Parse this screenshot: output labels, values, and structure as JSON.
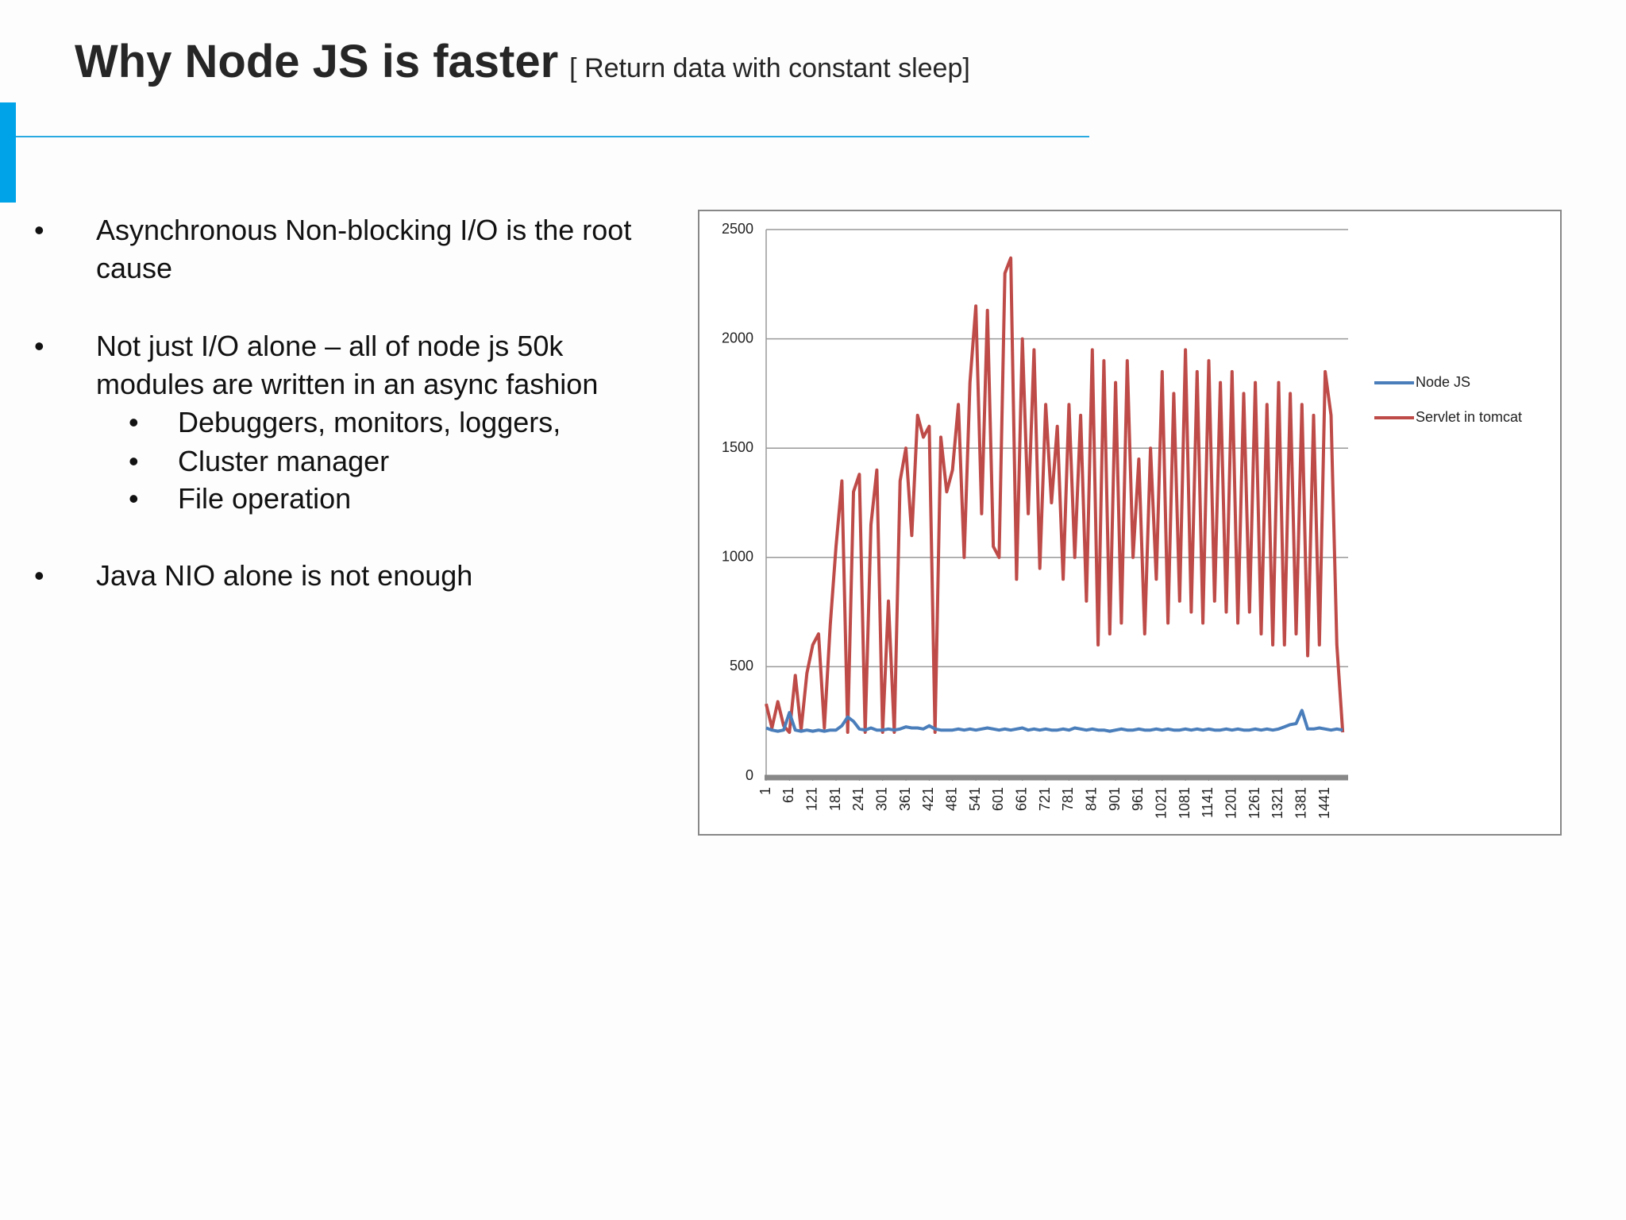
{
  "header": {
    "title": "Why Node JS is faster",
    "subtitle": "[ Return data with constant sleep]"
  },
  "bullets": [
    {
      "text": "Asynchronous Non-blocking I/O is the root cause"
    },
    {
      "text": "Not just I/O alone – all of node js 50k modules are written in an async fashion",
      "sub": [
        "Debuggers, monitors, loggers,",
        "Cluster manager",
        "File operation"
      ]
    },
    {
      "text": "Java NIO alone is not enough"
    }
  ],
  "chart_data": {
    "type": "line",
    "x": [
      1,
      16,
      31,
      46,
      61,
      76,
      91,
      106,
      121,
      136,
      151,
      166,
      181,
      196,
      211,
      226,
      241,
      256,
      271,
      286,
      301,
      316,
      331,
      346,
      361,
      376,
      391,
      406,
      421,
      436,
      451,
      466,
      481,
      496,
      511,
      526,
      541,
      556,
      571,
      586,
      601,
      616,
      631,
      646,
      661,
      676,
      691,
      706,
      721,
      736,
      751,
      766,
      781,
      796,
      811,
      826,
      841,
      856,
      871,
      886,
      901,
      916,
      931,
      946,
      961,
      976,
      991,
      1006,
      1021,
      1036,
      1051,
      1066,
      1081,
      1096,
      1111,
      1126,
      1141,
      1156,
      1171,
      1186,
      1201,
      1216,
      1231,
      1246,
      1261,
      1276,
      1291,
      1306,
      1321,
      1336,
      1351,
      1366,
      1381,
      1396,
      1411,
      1426,
      1441,
      1456,
      1471,
      1486
    ],
    "series": [
      {
        "name": "Node JS",
        "color": "#4a7ebb",
        "values": [
          220,
          210,
          205,
          210,
          290,
          210,
          205,
          210,
          205,
          210,
          205,
          210,
          210,
          230,
          270,
          250,
          215,
          210,
          220,
          210,
          210,
          215,
          210,
          215,
          225,
          220,
          220,
          215,
          230,
          215,
          210,
          210,
          210,
          215,
          210,
          215,
          210,
          215,
          220,
          215,
          210,
          215,
          210,
          215,
          220,
          210,
          215,
          210,
          215,
          210,
          210,
          215,
          210,
          220,
          215,
          210,
          215,
          210,
          210,
          205,
          210,
          215,
          210,
          210,
          215,
          210,
          210,
          215,
          210,
          215,
          210,
          210,
          215,
          210,
          215,
          210,
          215,
          210,
          210,
          215,
          210,
          215,
          210,
          210,
          215,
          210,
          215,
          210,
          215,
          225,
          235,
          240,
          300,
          215,
          215,
          220,
          215,
          210,
          215,
          210
        ]
      },
      {
        "name": "Servlet in tomcat",
        "color": "#be4b48",
        "values": [
          330,
          220,
          340,
          230,
          200,
          460,
          210,
          470,
          600,
          650,
          220,
          690,
          1050,
          1350,
          200,
          1300,
          1380,
          200,
          1150,
          1400,
          200,
          800,
          200,
          1350,
          1500,
          1100,
          1650,
          1550,
          1600,
          200,
          1550,
          1300,
          1400,
          1700,
          1000,
          1800,
          2150,
          1200,
          2130,
          1050,
          1000,
          2300,
          2370,
          900,
          2000,
          1200,
          1950,
          950,
          1700,
          1250,
          1600,
          900,
          1700,
          1000,
          1650,
          800,
          1950,
          600,
          1900,
          650,
          1800,
          700,
          1900,
          1000,
          1450,
          650,
          1500,
          900,
          1850,
          700,
          1750,
          800,
          1950,
          750,
          1850,
          700,
          1900,
          800,
          1800,
          750,
          1850,
          700,
          1750,
          750,
          1800,
          650,
          1700,
          600,
          1800,
          600,
          1750,
          650,
          1700,
          550,
          1650,
          600,
          1850,
          1650,
          600,
          200
        ]
      }
    ],
    "xlim": [
      1,
      1500
    ],
    "xticks": [
      1,
      61,
      121,
      181,
      241,
      301,
      361,
      421,
      481,
      541,
      601,
      661,
      721,
      781,
      841,
      901,
      961,
      1021,
      1081,
      1141,
      1201,
      1261,
      1321,
      1381,
      1441
    ],
    "ylim": [
      0,
      2500
    ],
    "yticks": [
      0,
      500,
      1000,
      1500,
      2000,
      2500
    ],
    "grid": true,
    "legend": "right"
  }
}
